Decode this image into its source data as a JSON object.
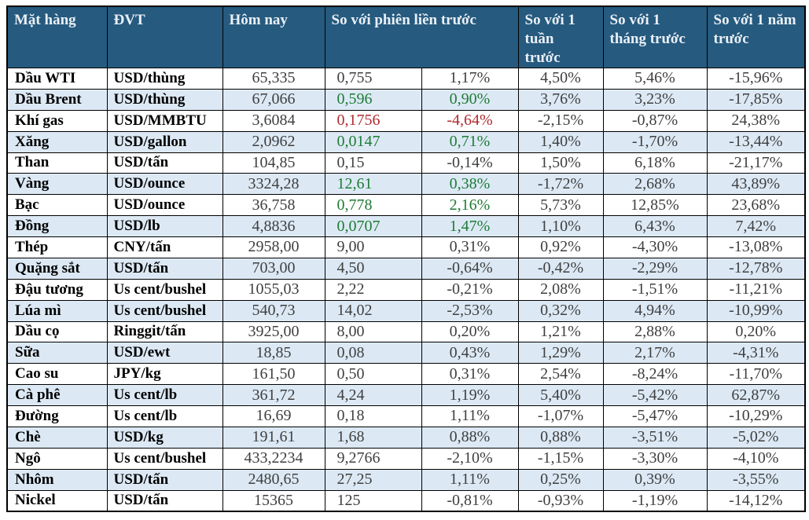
{
  "colors": {
    "header_bg": "#265A7E",
    "header_text": "#EAF0F7",
    "row_stripe": "#DCE9F5",
    "positive_green": "#1E7B34",
    "negative_red": "#B02A30",
    "number_text": "#3F3F3F",
    "border": "#000000"
  },
  "table": {
    "headers": {
      "commodity": "Mặt hàng",
      "unit": "ĐVT",
      "today": "Hôm nay",
      "vs_prev_session": "So với phiên liền trước",
      "vs_week": "So với 1 tuần trước",
      "vs_month": "So với 1 tháng trước",
      "vs_year": "So với 1 năm trước"
    },
    "rows": [
      {
        "name": "Dầu WTI",
        "unit": "USD/thùng",
        "today": "65,335",
        "change": "0,755",
        "pct": "1,17%",
        "week": "4,50%",
        "month": "5,46%",
        "year": "-15,96%",
        "highlight": "none"
      },
      {
        "name": "Dầu Brent",
        "unit": "USD/thùng",
        "today": "67,066",
        "change": "0,596",
        "pct": "0,90%",
        "week": "3,76%",
        "month": "3,23%",
        "year": "-17,85%",
        "highlight": "green"
      },
      {
        "name": "Khí gas",
        "unit": "USD/MMBTU",
        "today": "3,6084",
        "change": "0,1756",
        "pct": "-4,64%",
        "week": "-2,15%",
        "month": "-0,87%",
        "year": "24,38%",
        "highlight": "red"
      },
      {
        "name": "Xăng",
        "unit": "USD/gallon",
        "today": "2,0962",
        "change": "0,0147",
        "pct": "0,71%",
        "week": "1,40%",
        "month": "-1,70%",
        "year": "-13,44%",
        "highlight": "green"
      },
      {
        "name": "Than",
        "unit": "USD/tấn",
        "today": "104,85",
        "change": "0,15",
        "pct": "-0,14%",
        "week": "1,50%",
        "month": "6,18%",
        "year": "-21,17%",
        "highlight": "none"
      },
      {
        "name": "Vàng",
        "unit": "USD/ounce",
        "today": "3324,28",
        "change": "12,61",
        "pct": "0,38%",
        "week": "-1,72%",
        "month": "2,68%",
        "year": "43,89%",
        "highlight": "green"
      },
      {
        "name": "Bạc",
        "unit": "USD/ounce",
        "today": "36,758",
        "change": "0,778",
        "pct": "2,16%",
        "week": "5,73%",
        "month": "12,85%",
        "year": "23,68%",
        "highlight": "green"
      },
      {
        "name": "Đồng",
        "unit": "USD/lb",
        "today": "4,8836",
        "change": "0,0707",
        "pct": "1,47%",
        "week": "1,10%",
        "month": "6,43%",
        "year": "7,42%",
        "highlight": "green"
      },
      {
        "name": "Thép",
        "unit": "CNY/tấn",
        "today": "2958,00",
        "change": "9,00",
        "pct": "0,31%",
        "week": "0,92%",
        "month": "-4,30%",
        "year": "-13,08%",
        "highlight": "none"
      },
      {
        "name": "Quặng sắt",
        "unit": "USD/tấn",
        "today": "703,00",
        "change": "4,50",
        "pct": "-0,64%",
        "week": "-0,42%",
        "month": "-2,29%",
        "year": "-12,78%",
        "highlight": "none"
      },
      {
        "name": "Đậu tương",
        "unit": "Us cent/bushel",
        "today": "1055,03",
        "change": "2,22",
        "pct": "-0,21%",
        "week": "2,08%",
        "month": "-1,51%",
        "year": "-11,21%",
        "highlight": "none"
      },
      {
        "name": "Lúa mì",
        "unit": "Us cent/bushel",
        "today": "540,73",
        "change": "14,02",
        "pct": "-2,53%",
        "week": "0,32%",
        "month": "4,94%",
        "year": "-10,99%",
        "highlight": "none"
      },
      {
        "name": "Dầu cọ",
        "unit": "Ringgit/tấn",
        "today": "3925,00",
        "change": "8,00",
        "pct": "0,20%",
        "week": "1,21%",
        "month": "2,88%",
        "year": "0,20%",
        "highlight": "none"
      },
      {
        "name": "Sữa",
        "unit": "USD/ewt",
        "today": "18,85",
        "change": "0,08",
        "pct": "0,43%",
        "week": "1,29%",
        "month": "2,17%",
        "year": "-4,31%",
        "highlight": "none"
      },
      {
        "name": "Cao su",
        "unit": "JPY/kg",
        "today": "161,50",
        "change": "0,50",
        "pct": "0,31%",
        "week": "2,54%",
        "month": "-8,24%",
        "year": "-11,70%",
        "highlight": "none"
      },
      {
        "name": "Cà phê",
        "unit": "Us cent/lb",
        "today": "361,72",
        "change": "4,24",
        "pct": "1,19%",
        "week": "5,40%",
        "month": "-5,42%",
        "year": "62,87%",
        "highlight": "none"
      },
      {
        "name": "Đường",
        "unit": "Us cent/lb",
        "today": "16,69",
        "change": "0,18",
        "pct": "1,11%",
        "week": "-1,07%",
        "month": "-5,47%",
        "year": "-10,29%",
        "highlight": "none"
      },
      {
        "name": "Chè",
        "unit": "USD/kg",
        "today": "191,61",
        "change": "1,68",
        "pct": "0,88%",
        "week": "0,88%",
        "month": "-3,51%",
        "year": "-5,02%",
        "highlight": "none"
      },
      {
        "name": "Ngô",
        "unit": "Us cent/bushel",
        "today": "433,2234",
        "change": "9,2766",
        "pct": "-2,10%",
        "week": "-1,15%",
        "month": "-3,30%",
        "year": "-4,10%",
        "highlight": "none"
      },
      {
        "name": "Nhôm",
        "unit": "USD/tấn",
        "today": "2480,65",
        "change": "27,25",
        "pct": "1,11%",
        "week": "0,25%",
        "month": "0,39%",
        "year": "-3,55%",
        "highlight": "none"
      },
      {
        "name": "Nickel",
        "unit": "USD/tấn",
        "today": "15365",
        "change": "125",
        "pct": "-0,81%",
        "week": "-0,93%",
        "month": "-1,19%",
        "year": "-14,12%",
        "highlight": "none"
      }
    ]
  }
}
